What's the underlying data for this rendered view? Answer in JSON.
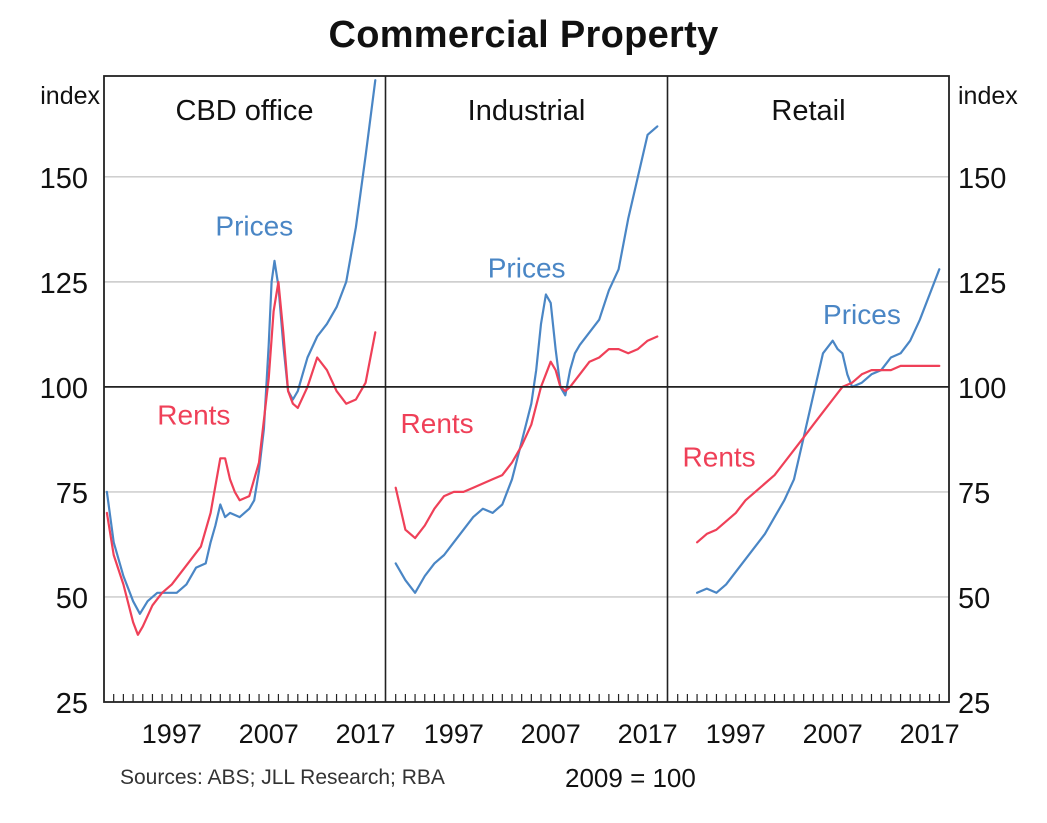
{
  "title": "Commercial Property",
  "footer": {
    "sources": "Sources: ABS; JLL Research; RBA",
    "base_note": "2009 = 100"
  },
  "colors": {
    "prices": "#4a86c5",
    "rents": "#ef4058",
    "grid": "#c8c8c8",
    "axis": "#222222"
  },
  "chart_data": {
    "type": "line",
    "title": "Commercial Property",
    "ylabel_left": "index",
    "ylabel_right": "index",
    "y_ticks": [
      25,
      50,
      75,
      100,
      125,
      150
    ],
    "x_tick_labels": [
      "1997",
      "2007",
      "2017"
    ],
    "ylim": [
      25,
      174
    ],
    "xlim": [
      1990,
      2019
    ],
    "reference_line": 100,
    "panels": [
      {
        "name": "CBD office",
        "annotations": [
          {
            "text": "Prices",
            "series": "Prices",
            "x": 2001.5,
            "y": 136
          },
          {
            "text": "Rents",
            "series": "Rents",
            "x": 1995.5,
            "y": 91
          }
        ],
        "series": [
          {
            "name": "Prices",
            "x": [
              1990.3,
              1991,
              1992,
              1993,
              1993.7,
              1994.5,
              1995.5,
              1996.5,
              1997.5,
              1998.5,
              1999.5,
              2000.5,
              2001,
              2001.5,
              2002,
              2002.5,
              2003,
              2004,
              2005,
              2005.5,
              2006,
              2006.5,
              2007,
              2007.3,
              2007.6,
              2008,
              2008.5,
              2009,
              2009.5,
              2010,
              2010.5,
              2011,
              2012,
              2013,
              2014,
              2015,
              2016,
              2017,
              2018
            ],
            "values": [
              75,
              63,
              55,
              49,
              46,
              49,
              51,
              51,
              51,
              53,
              57,
              58,
              63,
              67,
              72,
              69,
              70,
              69,
              71,
              73,
              80,
              90,
              110,
              125,
              130,
              124,
              110,
              99,
              97,
              99,
              103,
              107,
              112,
              115,
              119,
              125,
              138,
              155,
              173
            ]
          },
          {
            "name": "Rents",
            "x": [
              1990.3,
              1991,
              1992,
              1993,
              1993.5,
              1994,
              1995,
              1996,
              1997,
              1998,
              1999,
              2000,
              2001,
              2002,
              2002.5,
              2003,
              2003.5,
              2004,
              2005,
              2006,
              2007,
              2007.5,
              2008,
              2008.5,
              2009,
              2009.5,
              2010,
              2011,
              2012,
              2013,
              2014,
              2015,
              2016,
              2017,
              2018
            ],
            "values": [
              70,
              60,
              53,
              44,
              41,
              43,
              48,
              51,
              53,
              56,
              59,
              62,
              70,
              83,
              83,
              78,
              75,
              73,
              74,
              82,
              102,
              118,
              125,
              113,
              99,
              96,
              95,
              100,
              107,
              104,
              99,
              96,
              97,
              101,
              113
            ]
          }
        ]
      },
      {
        "name": "Industrial",
        "annotations": [
          {
            "text": "Prices",
            "series": "Prices",
            "x": 2000.5,
            "y": 126
          },
          {
            "text": "Rents",
            "series": "Rents",
            "x": 1991.5,
            "y": 89
          }
        ],
        "series": [
          {
            "name": "Prices",
            "x": [
              1991,
              1992,
              1993,
              1994,
              1995,
              1996,
              1997,
              1998,
              1999,
              2000,
              2001,
              2002,
              2003,
              2004,
              2005,
              2005.5,
              2006,
              2006.5,
              2007,
              2007.5,
              2008,
              2008.5,
              2009,
              2009.5,
              2010,
              2011,
              2012,
              2013,
              2014,
              2015,
              2016,
              2017,
              2018
            ],
            "values": [
              58,
              54,
              51,
              55,
              58,
              60,
              63,
              66,
              69,
              71,
              70,
              72,
              78,
              87,
              96,
              104,
              115,
              122,
              120,
              109,
              100,
              98,
              104,
              108,
              110,
              113,
              116,
              123,
              128,
              140,
              150,
              160,
              162
            ]
          },
          {
            "name": "Rents",
            "x": [
              1991,
              1992,
              1993,
              1994,
              1995,
              1996,
              1997,
              1998,
              1999,
              2000,
              2001,
              2002,
              2003,
              2004,
              2005,
              2006,
              2007,
              2007.5,
              2008,
              2008.5,
              2009,
              2010,
              2011,
              2012,
              2013,
              2014,
              2015,
              2016,
              2017,
              2018
            ],
            "values": [
              76,
              66,
              64,
              67,
              71,
              74,
              75,
              75,
              76,
              77,
              78,
              79,
              82,
              86,
              91,
              100,
              106,
              104,
              100,
              99,
              100,
              103,
              106,
              107,
              109,
              109,
              108,
              109,
              111,
              112
            ]
          }
        ]
      },
      {
        "name": "Retail",
        "annotations": [
          {
            "text": "Prices",
            "series": "Prices",
            "x": 2006,
            "y": 115
          },
          {
            "text": "Rents",
            "series": "Rents",
            "x": 1991.5,
            "y": 81
          }
        ],
        "series": [
          {
            "name": "Prices",
            "x": [
              1993,
              1994,
              1995,
              1996,
              1997,
              1998,
              1999,
              2000,
              2001,
              2002,
              2003,
              2004,
              2005,
              2006,
              2007,
              2007.5,
              2008,
              2008.5,
              2009,
              2010,
              2011,
              2012,
              2013,
              2014,
              2015,
              2016,
              2017,
              2018
            ],
            "values": [
              51,
              52,
              51,
              53,
              56,
              59,
              62,
              65,
              69,
              73,
              78,
              88,
              98,
              108,
              111,
              109,
              108,
              103,
              100,
              101,
              103,
              104,
              107,
              108,
              111,
              116,
              122,
              128
            ]
          },
          {
            "name": "Rents",
            "x": [
              1993,
              1994,
              1995,
              1996,
              1997,
              1998,
              1999,
              2000,
              2001,
              2002,
              2003,
              2004,
              2005,
              2006,
              2007,
              2008,
              2009,
              2010,
              2011,
              2012,
              2013,
              2014,
              2015,
              2016,
              2017,
              2018
            ],
            "values": [
              63,
              65,
              66,
              68,
              70,
              73,
              75,
              77,
              79,
              82,
              85,
              88,
              91,
              94,
              97,
              100,
              101,
              103,
              104,
              104,
              104,
              105,
              105,
              105,
              105,
              105
            ]
          }
        ]
      }
    ]
  }
}
